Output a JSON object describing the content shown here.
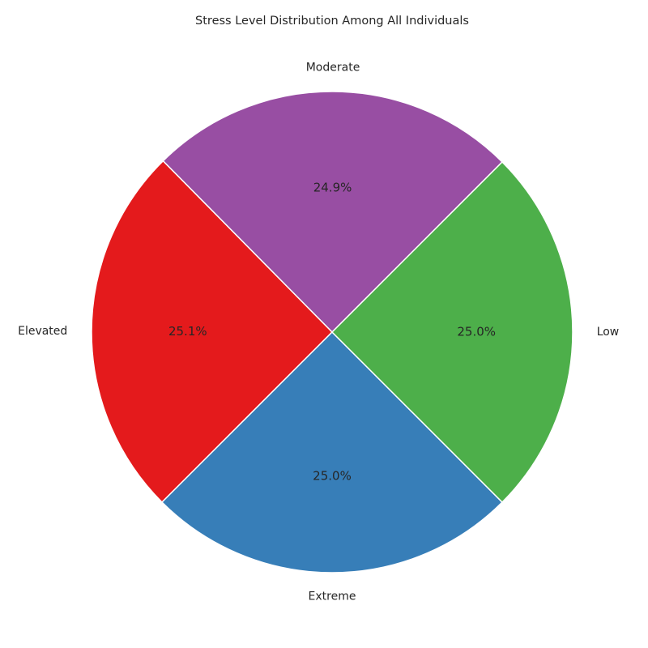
{
  "chart_data": {
    "type": "pie",
    "title": "Stress Level Distribution Among All Individuals",
    "start_angle_deg": 45,
    "direction": "counterclockwise",
    "slices": [
      {
        "label": "Moderate",
        "value": 24.9,
        "pct_label": "24.9%",
        "color": "#984EA3"
      },
      {
        "label": "Elevated",
        "value": 25.1,
        "pct_label": "25.1%",
        "color": "#E41A1C"
      },
      {
        "label": "Extreme",
        "value": 25.0,
        "pct_label": "25.0%",
        "color": "#377EB8"
      },
      {
        "label": "Low",
        "value": 25.0,
        "pct_label": "25.0%",
        "color": "#4DAF4A"
      }
    ]
  }
}
